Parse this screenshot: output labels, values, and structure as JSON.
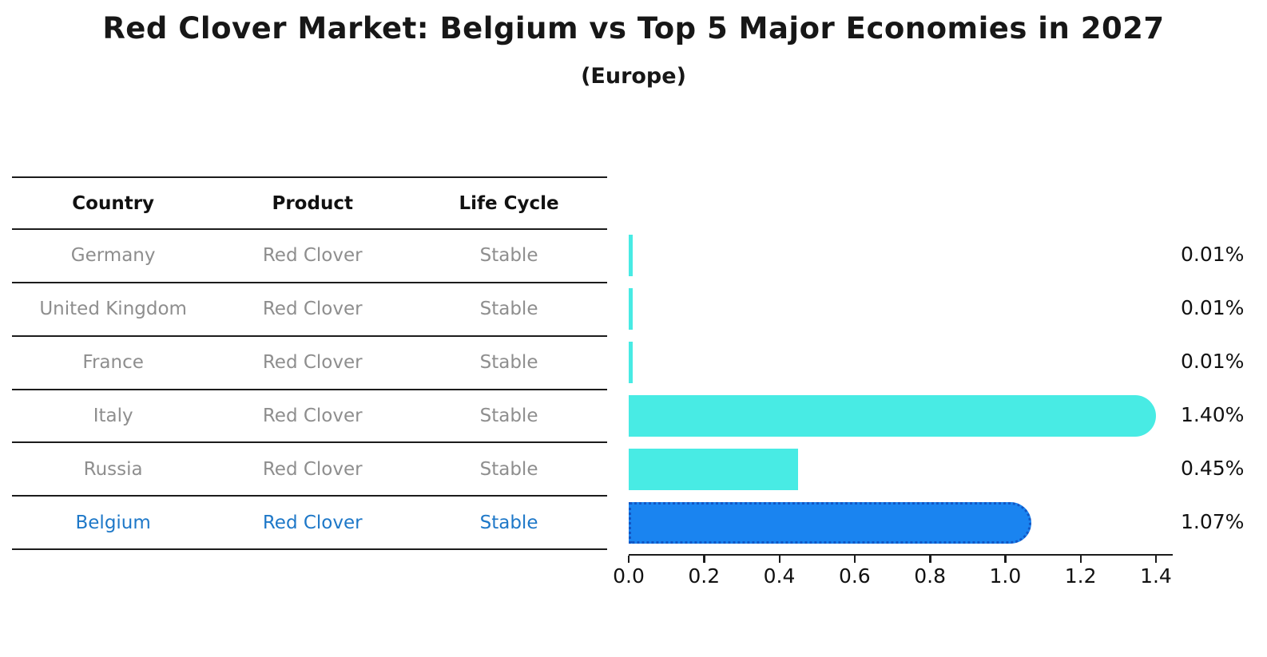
{
  "chart_data": {
    "type": "bar",
    "orientation": "horizontal",
    "title": "Red Clover Market: Belgium vs Top 5 Major Economies in 2027",
    "subtitle": "(Europe)",
    "categories": [
      "Germany",
      "United Kingdom",
      "France",
      "Italy",
      "Russia",
      "Belgium"
    ],
    "values": [
      0.01,
      0.01,
      0.01,
      1.4,
      0.45,
      1.07
    ],
    "value_labels": [
      "0.01%",
      "0.01%",
      "0.01%",
      "1.40%",
      "0.45%",
      "1.07%"
    ],
    "xlabel": "",
    "ylabel": "",
    "xlim": [
      0,
      1.45
    ],
    "xticks": [
      "0.0",
      "0.2",
      "0.4",
      "0.6",
      "0.8",
      "1.0",
      "1.2",
      "1.4"
    ],
    "grid": false,
    "legend": "none",
    "highlight_category": "Belgium",
    "rounded_ends": [
      false,
      false,
      false,
      true,
      false,
      true
    ],
    "colors": {
      "default_bar": "#48EBE4",
      "highlight_bar": "#1A84F0",
      "highlight_bar_border": "#1256C4",
      "highlight_text": "#1E78C8",
      "table_text": "#8E8E8E",
      "header_text": "#111111",
      "axis_text": "#111111"
    }
  },
  "table": {
    "headers": [
      "Country",
      "Product",
      "Life Cycle"
    ],
    "rows": [
      {
        "country": "Germany",
        "product": "Red Clover",
        "life_cycle": "Stable",
        "highlight": false
      },
      {
        "country": "United Kingdom",
        "product": "Red Clover",
        "life_cycle": "Stable",
        "highlight": false
      },
      {
        "country": "France",
        "product": "Red Clover",
        "life_cycle": "Stable",
        "highlight": false
      },
      {
        "country": "Italy",
        "product": "Red Clover",
        "life_cycle": "Stable",
        "highlight": false
      },
      {
        "country": "Russia",
        "product": "Red Clover",
        "life_cycle": "Stable",
        "highlight": false
      },
      {
        "country": "Belgium",
        "product": "Red Clover",
        "life_cycle": "Stable",
        "highlight": true
      }
    ]
  }
}
